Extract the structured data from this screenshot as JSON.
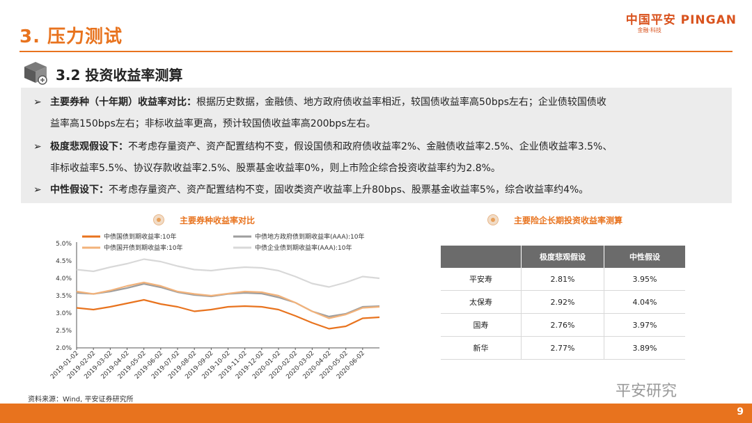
{
  "header": {
    "title": "3. 压力测试",
    "logo": "中国平安 PINGAN",
    "logo_sub": "金融·科技"
  },
  "subtitle": "3.2 投资收益率测算",
  "bullets": [
    {
      "marker": "➢",
      "bold": "主要券种（十年期）收益率对比：",
      "line1": "根据历史数据，金融债、地方政府债收益率相近，较国债收益率高50bps左右；企业债较国债收",
      "line2": "益率高150bps左右；非标收益率更高，预计较国债收益率高200bps左右。"
    },
    {
      "marker": "➢",
      "bold": "极度悲观假设下：",
      "line1": "不考虑存量资产、资产配置结构不变，假设国债和政府债收益率2%、金融债收益率2.5%、企业债收益率3.5%、",
      "line2": "非标收益率5.5%、协议存款收益率2.5%、股票基金收益率0%，则上市险企综合投资收益率约为2.8%。"
    },
    {
      "marker": "➢",
      "bold": "中性假设下：",
      "line1": "不考虑存量资产、资产配置结构不变，固收类资产收益率上升80bps、股票基金收益率5%，综合收益率约4%。",
      "line2": ""
    }
  ],
  "left_section_title": "主要券种收益率对比",
  "right_section_title": "主要险企长期投资收益率测算",
  "chart_data": {
    "type": "line",
    "x": [
      "2019-01-02",
      "2019-02-02",
      "2019-03-02",
      "2019-04-02",
      "2019-05-02",
      "2019-06-02",
      "2019-07-02",
      "2019-08-02",
      "2019-09-02",
      "2019-10-02",
      "2019-11-02",
      "2019-12-02",
      "2020-01-02",
      "2020-02-02",
      "2020-03-02",
      "2020-04-02",
      "2020-05-02",
      "2020-06-02",
      "2020-06-30"
    ],
    "x_tick_labels": [
      "2019-01-02",
      "2019-02-02",
      "2019-03-02",
      "2019-04-02",
      "2019-05-02",
      "2019-06-02",
      "2019-07-02",
      "2019-08-02",
      "2019-09-02",
      "2019-10-02",
      "2019-11-02",
      "2019-12-02",
      "2020-01-02",
      "2020-02-02",
      "2020-03-02",
      "2020-04-02",
      "2020-05-02",
      "2020-06-02"
    ],
    "ylim": [
      2.0,
      5.0
    ],
    "y_ticks": [
      "2.0%",
      "2.5%",
      "3.0%",
      "3.5%",
      "4.0%",
      "4.5%",
      "5.0%"
    ],
    "series": [
      {
        "name": "中债国债到期收益率:10年",
        "color": "#e8731e",
        "width": 2.2,
        "values": [
          3.15,
          3.1,
          3.18,
          3.28,
          3.38,
          3.26,
          3.18,
          3.05,
          3.1,
          3.18,
          3.2,
          3.18,
          3.1,
          2.92,
          2.72,
          2.55,
          2.62,
          2.85,
          2.88
        ]
      },
      {
        "name": "中债地方政府债到期收益率(AAA):10年",
        "color": "#9e9e9e",
        "width": 2.2,
        "values": [
          3.58,
          3.55,
          3.62,
          3.72,
          3.84,
          3.74,
          3.6,
          3.52,
          3.48,
          3.55,
          3.58,
          3.56,
          3.45,
          3.3,
          3.05,
          2.9,
          2.98,
          3.18,
          3.2
        ]
      },
      {
        "name": "中债国开债到期收益率:10年",
        "color": "#f2b27a",
        "width": 2.2,
        "values": [
          3.62,
          3.55,
          3.65,
          3.78,
          3.88,
          3.78,
          3.62,
          3.55,
          3.5,
          3.56,
          3.62,
          3.6,
          3.5,
          3.3,
          3.05,
          2.85,
          2.96,
          3.15,
          3.18
        ]
      },
      {
        "name": "中债企业债到期收益率(AAA):10年",
        "color": "#d8d8d8",
        "width": 2.2,
        "values": [
          4.25,
          4.2,
          4.32,
          4.42,
          4.55,
          4.48,
          4.35,
          4.25,
          4.22,
          4.28,
          4.32,
          4.3,
          4.22,
          4.05,
          3.85,
          3.75,
          3.88,
          4.05,
          4.0
        ]
      }
    ]
  },
  "table": {
    "headers": [
      "",
      "极度悲观假设",
      "中性假设"
    ],
    "rows": [
      [
        "平安寿",
        "2.81%",
        "3.95%"
      ],
      [
        "太保寿",
        "2.92%",
        "4.04%"
      ],
      [
        "国寿",
        "2.76%",
        "3.97%"
      ],
      [
        "新华",
        "2.77%",
        "3.89%"
      ]
    ]
  },
  "source": "资料来源：Wind, 平安证券研究所",
  "watermark": "平安研究",
  "page_number": "9",
  "colors": {
    "accent": "#e8731e",
    "table_header": "#6b6b6b",
    "bullet_bg": "#ececec"
  }
}
